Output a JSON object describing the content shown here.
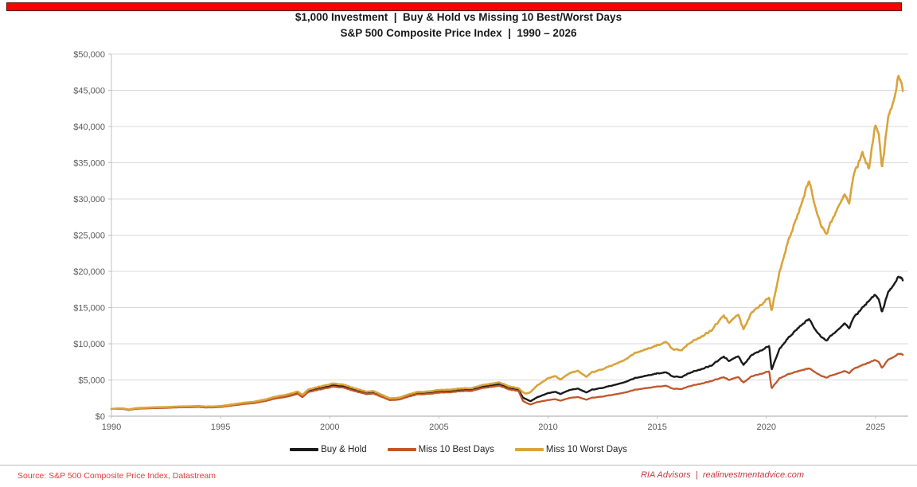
{
  "page": {
    "top_bar_color": "#fe0000",
    "title_line1": "$1,000 Investment  |  Buy & Hold vs Missing 10 Best/Worst Days",
    "title_line2": "S&P 500 Composite Price Index  |  1990 – 2026"
  },
  "chart_data": {
    "type": "line",
    "title": "$1,000 Investment | Buy & Hold vs Missing 10 Best/Worst Days",
    "subtitle": "S&P 500 Composite Price Index | 1990 – 2026",
    "xlabel": "",
    "ylabel": "",
    "xlim": [
      1990,
      2026.5
    ],
    "ylim": [
      0,
      50000
    ],
    "grid": true,
    "legend_position": "bottom",
    "x_ticks": [
      "1990",
      "1995",
      "2000",
      "2005",
      "2010",
      "2015",
      "2020",
      "2025"
    ],
    "x_tick_values": [
      1990,
      1995,
      2000,
      2005,
      2010,
      2015,
      2020,
      2025
    ],
    "y_ticks": [
      "$0",
      "$5,000",
      "$10,000",
      "$15,000",
      "$20,000",
      "$25,000",
      "$30,000",
      "$35,000",
      "$40,000",
      "$45,000",
      "$50,000"
    ],
    "y_tick_values": [
      0,
      5000,
      10000,
      15000,
      20000,
      25000,
      30000,
      35000,
      40000,
      45000,
      50000
    ],
    "x": [
      1990.0,
      1990.3,
      1990.55,
      1990.8,
      1991.1,
      1991.5,
      1992.0,
      1992.5,
      1993.0,
      1993.5,
      1994.0,
      1994.3,
      1994.7,
      1995.0,
      1995.5,
      1996.0,
      1996.5,
      1997.0,
      1997.5,
      1998.0,
      1998.55,
      1998.75,
      1999.0,
      1999.5,
      2000.2,
      2000.6,
      2001.0,
      2001.7,
      2002.0,
      2002.75,
      2003.2,
      2003.6,
      2004.0,
      2004.5,
      2005.0,
      2005.5,
      2006.0,
      2006.5,
      2007.0,
      2007.75,
      2008.2,
      2008.65,
      2008.85,
      2009.0,
      2009.2,
      2009.5,
      2010.0,
      2010.35,
      2010.55,
      2011.0,
      2011.35,
      2011.75,
      2012.0,
      2012.5,
      2013.0,
      2013.5,
      2014.0,
      2014.5,
      2015.0,
      2015.4,
      2015.7,
      2016.1,
      2016.5,
      2017.0,
      2017.5,
      2018.05,
      2018.3,
      2018.7,
      2018.95,
      2019.3,
      2019.9,
      2020.13,
      2020.24,
      2020.6,
      2021.0,
      2021.5,
      2021.95,
      2022.2,
      2022.5,
      2022.75,
      2023.0,
      2023.3,
      2023.6,
      2023.8,
      2024.0,
      2024.4,
      2024.7,
      2025.0,
      2025.15,
      2025.3,
      2025.6,
      2025.9,
      2026.05,
      2026.25
    ],
    "series": [
      {
        "name": "Buy & Hold",
        "color": "#1a1a1a",
        "values": [
          1000,
          1040,
          1020,
          880,
          1050,
          1100,
          1170,
          1190,
          1260,
          1290,
          1330,
          1260,
          1280,
          1330,
          1530,
          1740,
          1880,
          2160,
          2560,
          2790,
          3230,
          2750,
          3480,
          3850,
          4300,
          4150,
          3780,
          3180,
          3300,
          2330,
          2430,
          2850,
          3170,
          3230,
          3430,
          3470,
          3660,
          3680,
          4080,
          4440,
          3920,
          3640,
          2550,
          2350,
          2080,
          2620,
          3190,
          3370,
          3060,
          3620,
          3830,
          3280,
          3650,
          3920,
          4280,
          4680,
          5280,
          5590,
          5890,
          6080,
          5480,
          5390,
          6010,
          6480,
          7030,
          8250,
          7620,
          8350,
          7080,
          8350,
          9330,
          9700,
          6420,
          9250,
          10800,
          12300,
          13420,
          12150,
          11000,
          10420,
          11250,
          11950,
          12850,
          12150,
          13650,
          14950,
          16050,
          16750,
          16150,
          14350,
          17250,
          18350,
          19450,
          18950
        ]
      },
      {
        "name": "Miss 10 Best Days",
        "color": "#c0562b",
        "values": [
          1000,
          1020,
          990,
          850,
          1010,
          1060,
          1120,
          1140,
          1210,
          1230,
          1270,
          1200,
          1220,
          1270,
          1460,
          1660,
          1790,
          2060,
          2440,
          2660,
          3080,
          2600,
          3310,
          3660,
          4090,
          3950,
          3590,
          3020,
          3130,
          2210,
          2300,
          2700,
          3010,
          3060,
          3250,
          3290,
          3470,
          3490,
          3870,
          4210,
          3710,
          3440,
          2100,
          1850,
          1620,
          1950,
          2230,
          2350,
          2140,
          2520,
          2660,
          2280,
          2540,
          2720,
          2970,
          3250,
          3660,
          3880,
          4080,
          4210,
          3800,
          3740,
          4170,
          4490,
          4870,
          5400,
          5000,
          5450,
          4650,
          5450,
          6000,
          6200,
          3850,
          5200,
          5800,
          6250,
          6600,
          6150,
          5600,
          5310,
          5660,
          5920,
          6250,
          5950,
          6550,
          7050,
          7450,
          7750,
          7500,
          6650,
          7850,
          8250,
          8700,
          8550
        ]
      },
      {
        "name": "Miss 10 Worst Days",
        "color": "#d9a43c",
        "values": [
          1000,
          1070,
          1060,
          930,
          1100,
          1160,
          1230,
          1250,
          1330,
          1360,
          1400,
          1330,
          1350,
          1400,
          1610,
          1830,
          1980,
          2270,
          2690,
          2940,
          3400,
          2900,
          3660,
          4050,
          4520,
          4370,
          3980,
          3350,
          3470,
          2460,
          2560,
          3000,
          3340,
          3400,
          3610,
          3650,
          3850,
          3870,
          4290,
          4670,
          4120,
          3830,
          3300,
          3100,
          3350,
          4250,
          5250,
          5550,
          5050,
          5950,
          6300,
          5450,
          6050,
          6500,
          7100,
          7750,
          8750,
          9250,
          9750,
          10300,
          9250,
          9100,
          10150,
          10950,
          11900,
          13950,
          12900,
          14150,
          12000,
          14150,
          15800,
          16400,
          14550,
          19800,
          24200,
          28300,
          32500,
          29400,
          26400,
          25100,
          27100,
          28900,
          30700,
          29400,
          33400,
          36300,
          34400,
          40300,
          39000,
          34200,
          41600,
          44100,
          47500,
          45400
        ]
      }
    ]
  },
  "footer": {
    "source": "Source: S&P 500 Composite Price Index, Datastream",
    "brand_left": "RIA Advisors",
    "brand_separator": "  |  ",
    "brand_right": "realinvestmentadvice.com"
  }
}
